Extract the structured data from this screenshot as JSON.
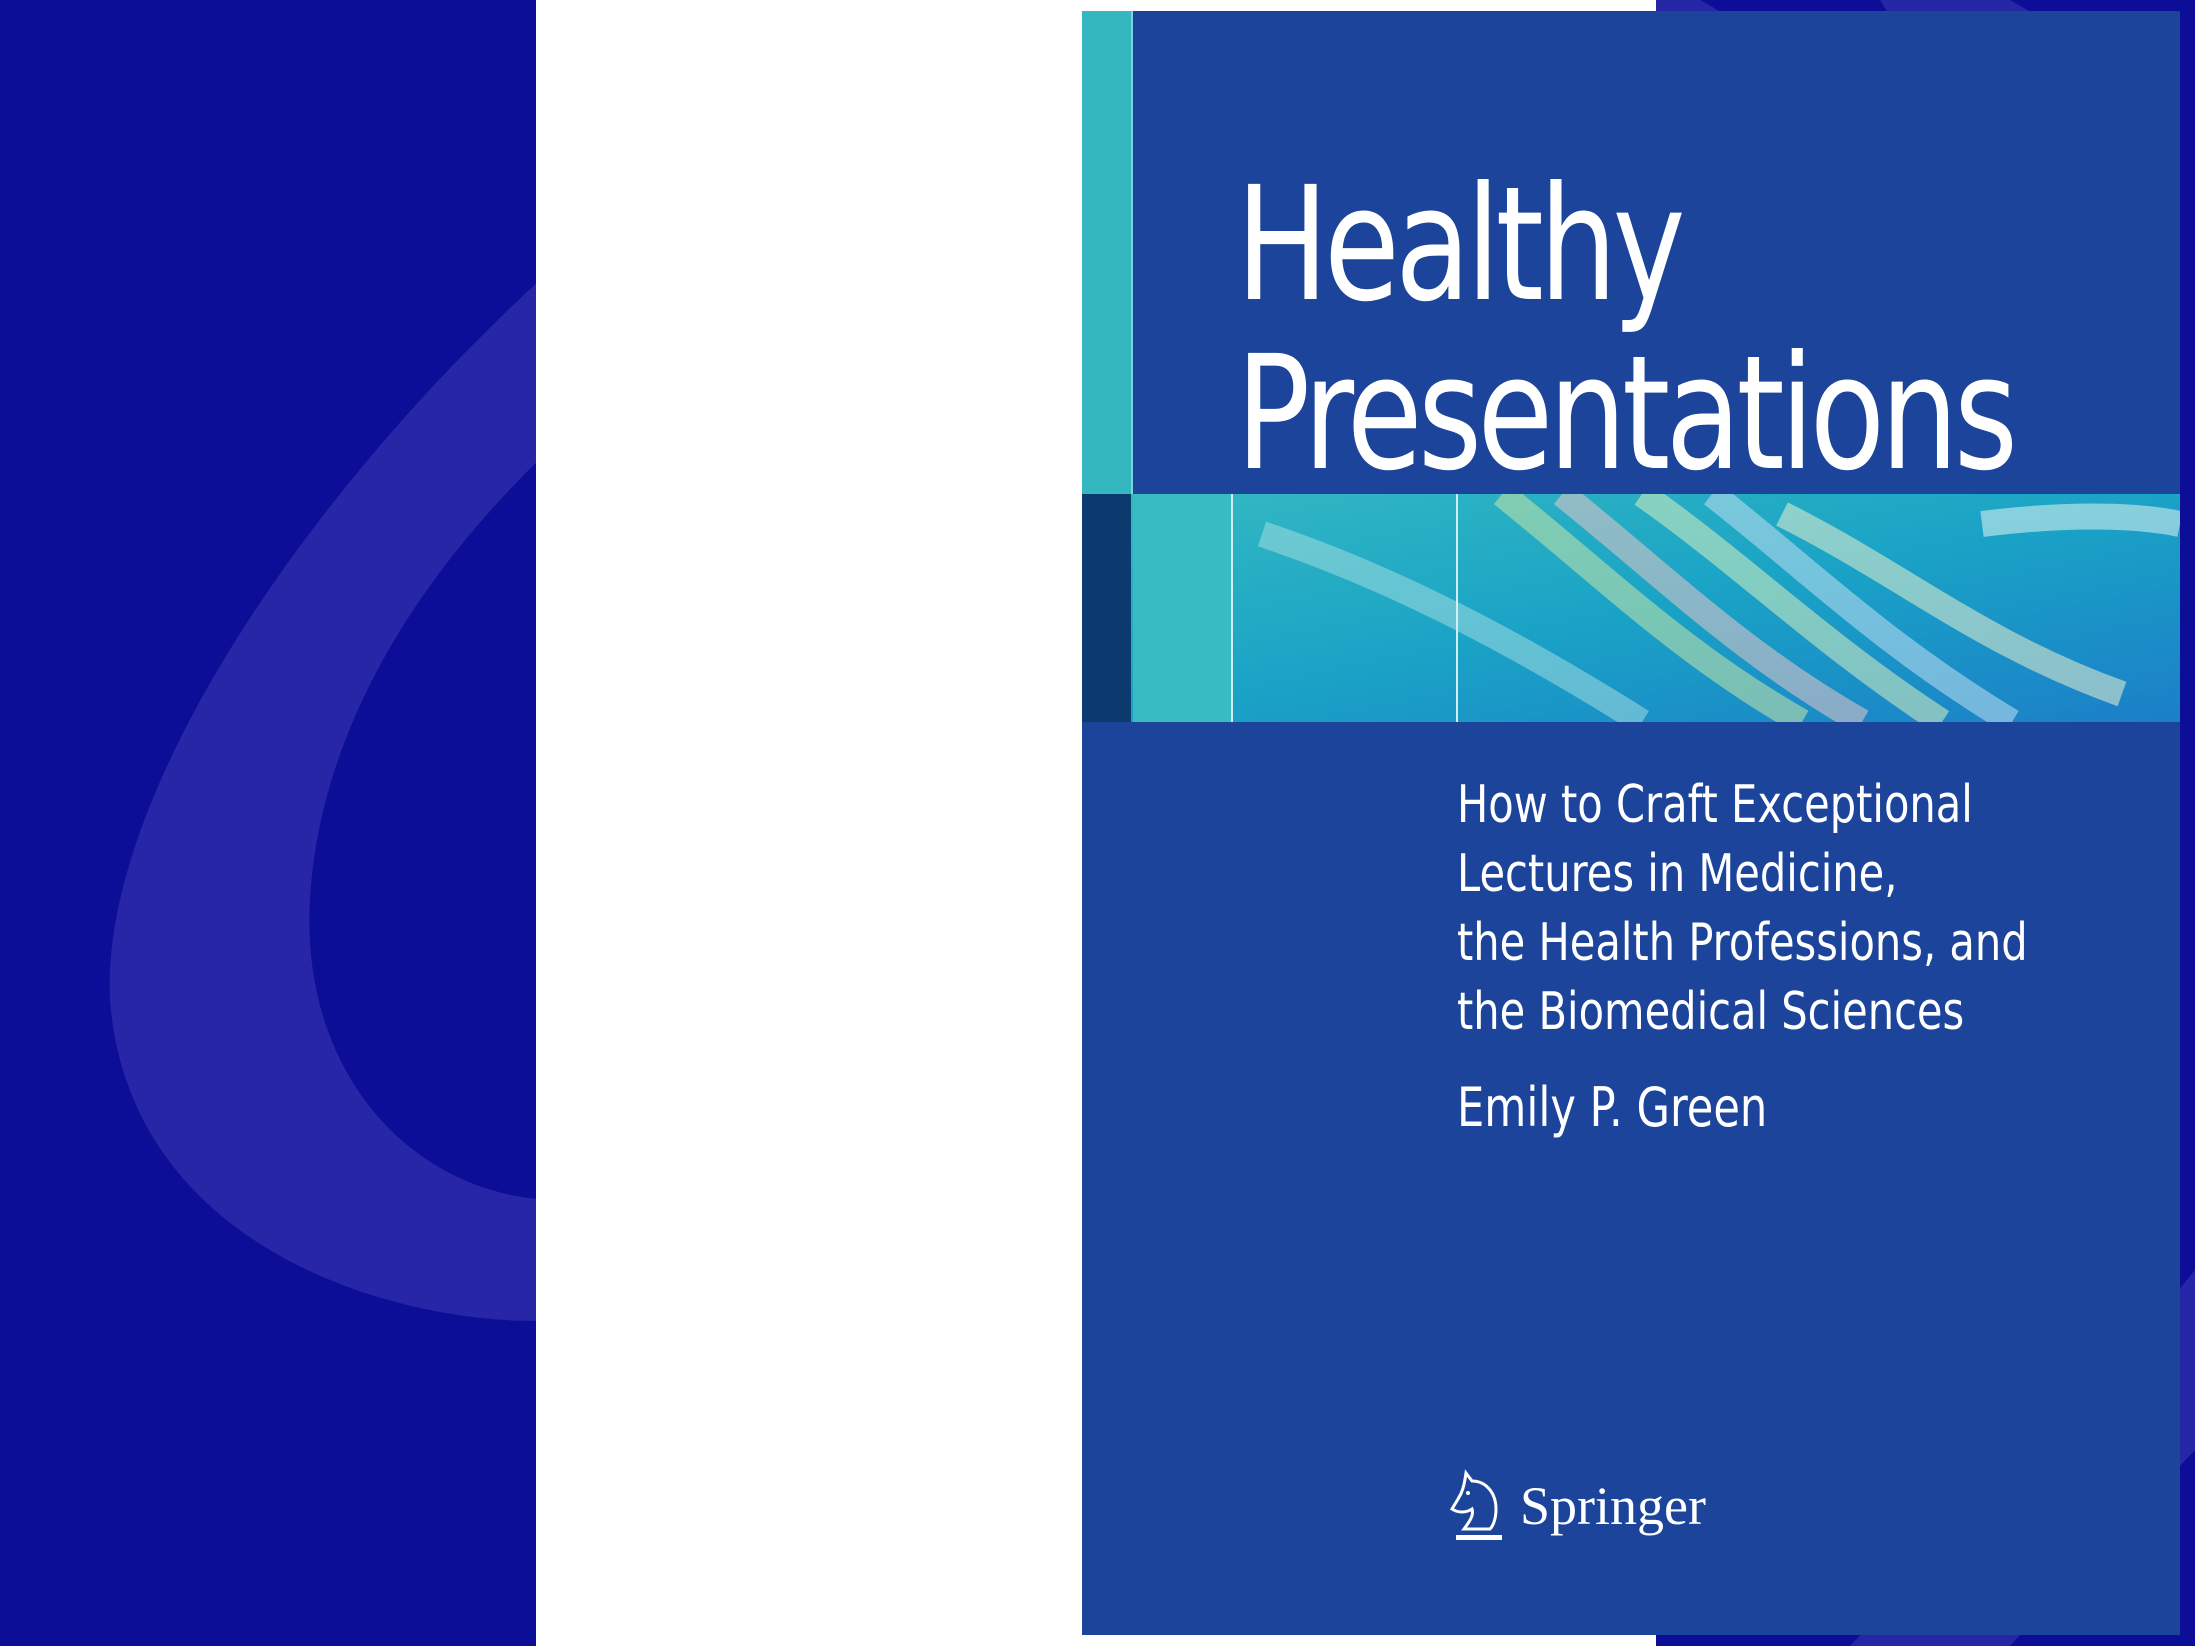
{
  "book": {
    "title_line1": "Healthy",
    "title_line2": "Presentations",
    "subtitle_lines": [
      "How to Craft Exceptional",
      "Lectures in Medicine,",
      "the Health Professions, and",
      "the Biomedical Sciences"
    ],
    "author": "Emily P. Green",
    "publisher": "Springer",
    "publisher_logo_icon": "knight-horse-icon"
  },
  "colors": {
    "background": "#0d0e97",
    "cover": "#1b449a",
    "accent_teal": "#35b7c0"
  }
}
